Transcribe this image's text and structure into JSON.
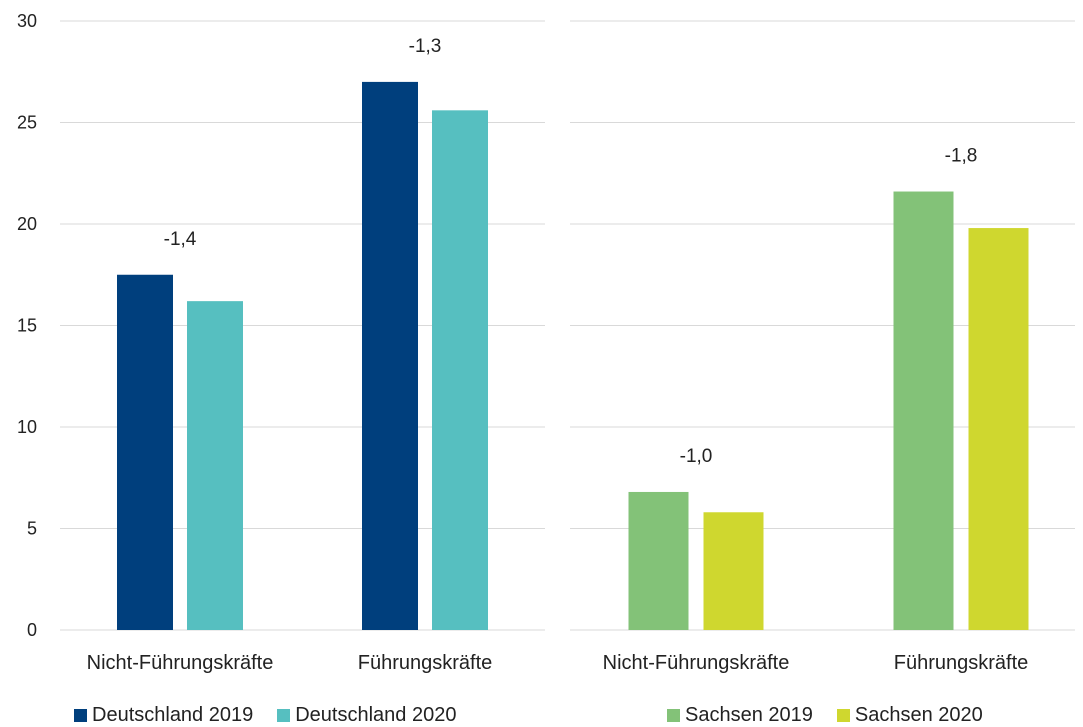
{
  "chart_data": [
    {
      "type": "bar",
      "categories": [
        "Nicht-Führungskräfte",
        "Führungskräfte"
      ],
      "series": [
        {
          "name": "Deutschland 2019",
          "values": [
            17.5,
            27.0
          ],
          "color": "#003f7d"
        },
        {
          "name": "Deutschland 2020",
          "values": [
            16.2,
            25.6
          ],
          "color": "#56bfc0"
        }
      ],
      "annotations": [
        "-1,4",
        "-1,3"
      ],
      "ylim": [
        0,
        30
      ],
      "yticks": [
        "0",
        "5",
        "10",
        "15",
        "20",
        "25",
        "30"
      ],
      "grid": true,
      "legend": "bottom"
    },
    {
      "type": "bar",
      "categories": [
        "Nicht-Führungskräfte",
        "Führungskräfte"
      ],
      "series": [
        {
          "name": "Sachsen 2019",
          "values": [
            6.8,
            21.6
          ],
          "color": "#83c278"
        },
        {
          "name": "Sachsen 2020",
          "values": [
            5.8,
            19.8
          ],
          "color": "#cfd72f"
        }
      ],
      "annotations": [
        "-1,0",
        "-1,8"
      ],
      "ylim": [
        0,
        30
      ],
      "grid": true,
      "legend": "bottom"
    }
  ]
}
